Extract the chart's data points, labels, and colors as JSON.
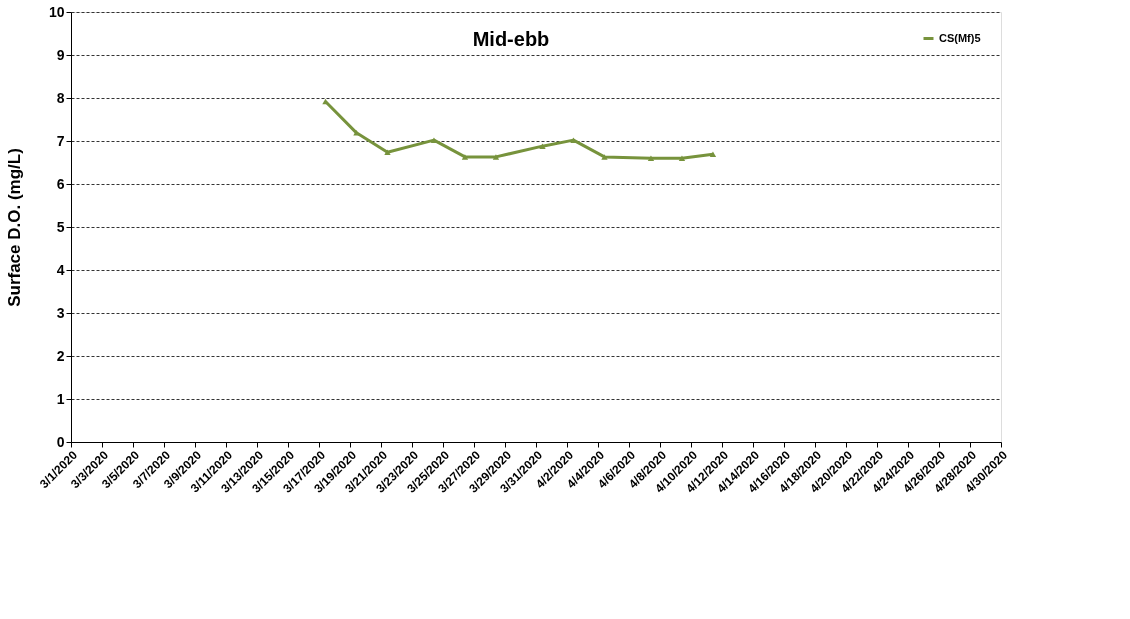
{
  "chart_data": {
    "type": "line",
    "title": "Mid-ebb",
    "ylabel": "Surface D.O. (mg/L)",
    "x": [
      "2020-03-17T10:00",
      "2020-03-19T10:00",
      "2020-03-21T10:00",
      "2020-03-24T10:00",
      "2020-03-26T10:00",
      "2020-03-28T10:00",
      "2020-03-31T10:00",
      "2020-04-02T10:00",
      "2020-04-04T10:00",
      "2020-04-07T10:00",
      "2020-04-09T10:00",
      "2020-04-11T10:00"
    ],
    "series": [
      {
        "name": "CS(Mf)5",
        "color": "#77933c",
        "values": [
          7.92,
          7.19,
          6.74,
          7.02,
          6.63,
          6.63,
          6.88,
          7.02,
          6.63,
          6.6,
          6.6,
          6.69
        ]
      }
    ],
    "xlim": [
      "2020-03-01",
      "2020-04-30"
    ],
    "xticks": [
      {
        "value": "2020-03-01",
        "label": "3/1/2020"
      },
      {
        "value": "2020-03-03",
        "label": "3/3/2020"
      },
      {
        "value": "2020-03-05",
        "label": "3/5/2020"
      },
      {
        "value": "2020-03-07",
        "label": "3/7/2020"
      },
      {
        "value": "2020-03-09",
        "label": "3/9/2020"
      },
      {
        "value": "2020-03-11",
        "label": "3/11/2020"
      },
      {
        "value": "2020-03-13",
        "label": "3/13/2020"
      },
      {
        "value": "2020-03-15",
        "label": "3/15/2020"
      },
      {
        "value": "2020-03-17",
        "label": "3/17/2020"
      },
      {
        "value": "2020-03-19",
        "label": "3/19/2020"
      },
      {
        "value": "2020-03-21",
        "label": "3/21/2020"
      },
      {
        "value": "2020-03-23",
        "label": "3/23/2020"
      },
      {
        "value": "2020-03-25",
        "label": "3/25/2020"
      },
      {
        "value": "2020-03-27",
        "label": "3/27/2020"
      },
      {
        "value": "2020-03-29",
        "label": "3/29/2020"
      },
      {
        "value": "2020-03-31",
        "label": "3/31/2020"
      },
      {
        "value": "2020-04-02",
        "label": "4/2/2020"
      },
      {
        "value": "2020-04-04",
        "label": "4/4/2020"
      },
      {
        "value": "2020-04-06",
        "label": "4/6/2020"
      },
      {
        "value": "2020-04-08",
        "label": "4/8/2020"
      },
      {
        "value": "2020-04-10",
        "label": "4/10/2020"
      },
      {
        "value": "2020-04-12",
        "label": "4/12/2020"
      },
      {
        "value": "2020-04-14",
        "label": "4/14/2020"
      },
      {
        "value": "2020-04-16",
        "label": "4/16/2020"
      },
      {
        "value": "2020-04-18",
        "label": "4/18/2020"
      },
      {
        "value": "2020-04-20",
        "label": "4/20/2020"
      },
      {
        "value": "2020-04-22",
        "label": "4/22/2020"
      },
      {
        "value": "2020-04-24",
        "label": "4/24/2020"
      },
      {
        "value": "2020-04-26",
        "label": "4/26/2020"
      },
      {
        "value": "2020-04-28",
        "label": "4/28/2020"
      },
      {
        "value": "2020-04-30",
        "label": "4/30/2020"
      }
    ],
    "ylim": [
      0,
      10
    ],
    "yticks": [
      0,
      1,
      2,
      3,
      4,
      5,
      6,
      7,
      8,
      9,
      10
    ],
    "grid": "y",
    "legend": "top right",
    "marker": "triangle",
    "line_style": "solid"
  }
}
